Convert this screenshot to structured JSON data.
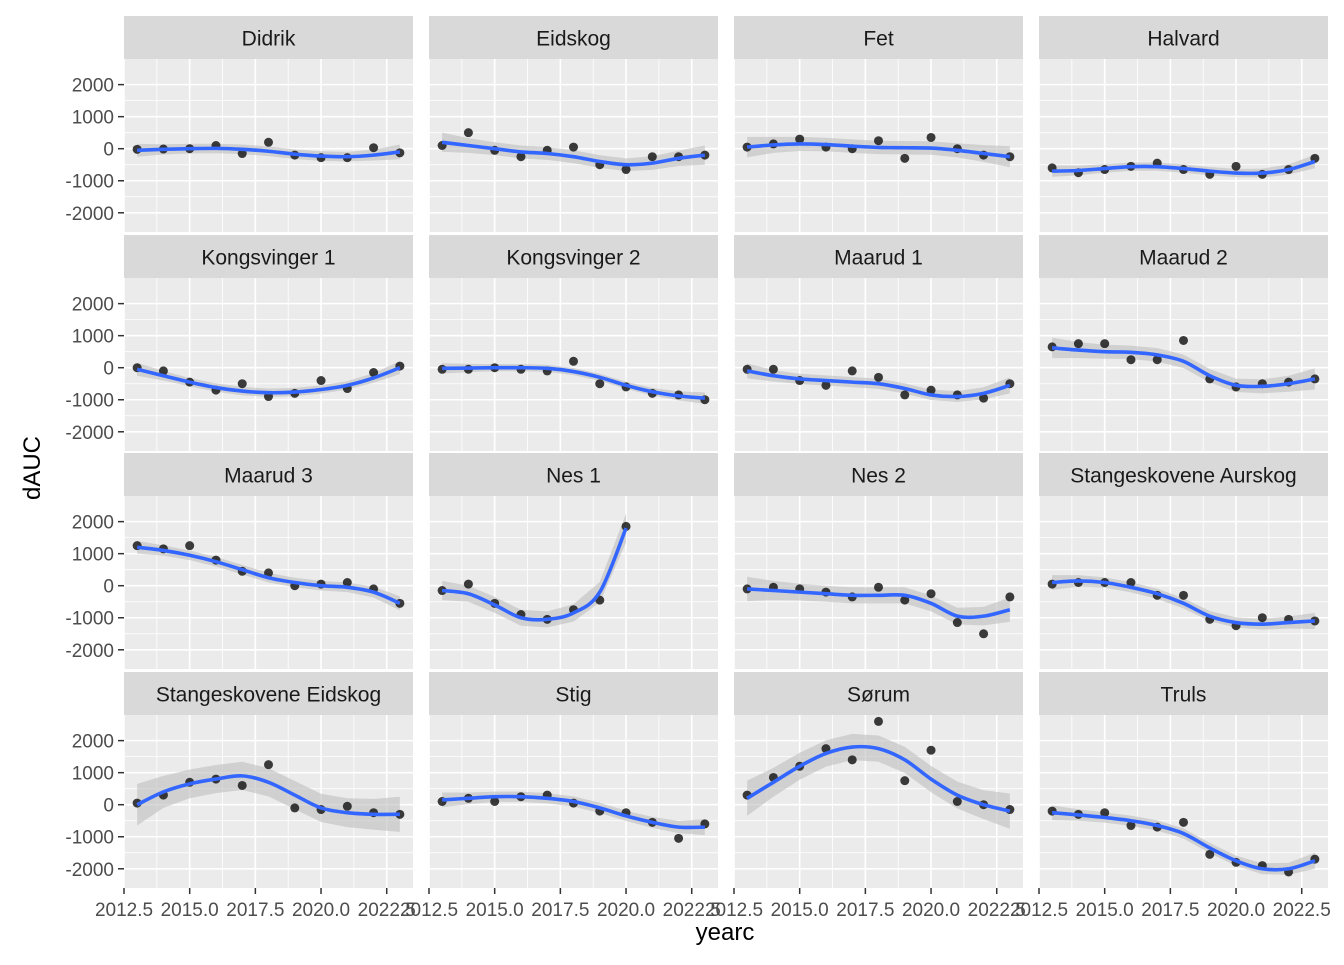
{
  "chart_data": {
    "type": "scatter",
    "xlabel": "yearc",
    "ylabel": "dAUC",
    "xlim": [
      2012.5,
      2023.5
    ],
    "ylim": [
      -2600,
      2800
    ],
    "x_ticks": [
      2012.5,
      2015.0,
      2017.5,
      2020.0,
      2022.5
    ],
    "x_tick_labels": [
      "2012.5",
      "2015.0",
      "2017.5",
      "2020.0",
      "2022.5"
    ],
    "y_ticks": [
      -2000,
      -1000,
      0,
      1000,
      2000
    ],
    "y_tick_labels": [
      "-2000",
      "-1000",
      "0",
      "1000",
      "2000"
    ],
    "grid": true,
    "colors": {
      "panel_bg": "#EBEBEB",
      "strip_bg": "#D9D9D9",
      "grid": "#FFFFFF",
      "point": "#1A1A1A",
      "smooth": "#3366FF",
      "band": "#BEBEBE"
    },
    "facets": [
      {
        "title": "Didrik",
        "x": [
          2013,
          2014,
          2015,
          2016,
          2017,
          2018,
          2019,
          2020,
          2021,
          2022,
          2023
        ],
        "y": [
          -20,
          -10,
          0,
          100,
          -150,
          200,
          -200,
          -280,
          -280,
          30,
          -130
        ],
        "smooth": [
          -50,
          -20,
          0,
          10,
          -20,
          -80,
          -170,
          -230,
          -250,
          -200,
          -100
        ],
        "se": [
          200,
          160,
          150,
          150,
          150,
          150,
          150,
          150,
          150,
          170,
          230
        ]
      },
      {
        "title": "Eidskog",
        "x": [
          2013,
          2014,
          2015,
          2016,
          2017,
          2018,
          2019,
          2020,
          2021,
          2022,
          2023
        ],
        "y": [
          100,
          500,
          -50,
          -250,
          -50,
          50,
          -500,
          -650,
          -250,
          -250,
          -200
        ],
        "smooth": [
          200,
          100,
          0,
          -100,
          -150,
          -250,
          -400,
          -500,
          -450,
          -300,
          -200
        ],
        "se": [
          300,
          230,
          200,
          200,
          200,
          200,
          200,
          200,
          210,
          240,
          300
        ]
      },
      {
        "title": "Fet",
        "x": [
          2013,
          2014,
          2015,
          2016,
          2017,
          2018,
          2019,
          2020,
          2021,
          2022,
          2023
        ],
        "y": [
          50,
          150,
          300,
          50,
          0,
          250,
          -300,
          350,
          0,
          -200,
          -250
        ],
        "smooth": [
          50,
          120,
          150,
          130,
          80,
          40,
          30,
          20,
          -50,
          -150,
          -250
        ],
        "se": [
          320,
          250,
          220,
          210,
          210,
          210,
          210,
          210,
          220,
          260,
          330
        ]
      },
      {
        "title": "Halvard",
        "x": [
          2013,
          2014,
          2015,
          2016,
          2017,
          2018,
          2019,
          2020,
          2021,
          2022,
          2023
        ],
        "y": [
          -600,
          -750,
          -650,
          -550,
          -450,
          -650,
          -800,
          -550,
          -800,
          -650,
          -300
        ],
        "smooth": [
          -700,
          -680,
          -620,
          -560,
          -560,
          -620,
          -700,
          -760,
          -760,
          -650,
          -400
        ],
        "se": [
          180,
          150,
          130,
          130,
          130,
          130,
          130,
          130,
          140,
          160,
          210
        ]
      },
      {
        "title": "Kongsvinger 1",
        "x": [
          2013,
          2014,
          2015,
          2016,
          2017,
          2018,
          2019,
          2020,
          2021,
          2022,
          2023
        ],
        "y": [
          0,
          -100,
          -450,
          -700,
          -500,
          -900,
          -800,
          -400,
          -650,
          -150,
          50
        ],
        "smooth": [
          -50,
          -250,
          -450,
          -620,
          -730,
          -780,
          -760,
          -680,
          -550,
          -320,
          0
        ],
        "se": [
          200,
          150,
          130,
          130,
          130,
          130,
          130,
          130,
          130,
          150,
          200
        ]
      },
      {
        "title": "Kongsvinger 2",
        "x": [
          2013,
          2014,
          2015,
          2016,
          2017,
          2018,
          2019,
          2020,
          2021,
          2022,
          2023
        ],
        "y": [
          -50,
          -50,
          0,
          -50,
          -100,
          200,
          -500,
          -600,
          -800,
          -850,
          -1000
        ],
        "smooth": [
          -20,
          -10,
          0,
          0,
          -20,
          -120,
          -300,
          -550,
          -750,
          -880,
          -950
        ],
        "se": [
          160,
          130,
          110,
          110,
          110,
          110,
          110,
          110,
          120,
          140,
          180
        ]
      },
      {
        "title": "Maarud 1",
        "x": [
          2013,
          2014,
          2015,
          2016,
          2017,
          2018,
          2019,
          2020,
          2021,
          2022,
          2023
        ],
        "y": [
          -50,
          -50,
          -400,
          -550,
          -100,
          -300,
          -850,
          -700,
          -850,
          -950,
          -500
        ],
        "smooth": [
          -100,
          -250,
          -350,
          -400,
          -450,
          -500,
          -650,
          -850,
          -900,
          -800,
          -550
        ],
        "se": [
          230,
          180,
          160,
          160,
          160,
          160,
          160,
          160,
          170,
          190,
          250
        ]
      },
      {
        "title": "Maarud 2",
        "x": [
          2013,
          2014,
          2015,
          2016,
          2017,
          2018,
          2019,
          2020,
          2021,
          2022,
          2023
        ],
        "y": [
          650,
          750,
          750,
          250,
          250,
          850,
          -350,
          -600,
          -500,
          -450,
          -350
        ],
        "smooth": [
          620,
          550,
          500,
          480,
          400,
          200,
          -250,
          -550,
          -580,
          -500,
          -350
        ],
        "se": [
          320,
          250,
          220,
          210,
          210,
          210,
          210,
          210,
          220,
          250,
          330
        ]
      },
      {
        "title": "Maarud 3",
        "x": [
          2013,
          2014,
          2015,
          2016,
          2017,
          2018,
          2019,
          2020,
          2021,
          2022,
          2023
        ],
        "y": [
          1250,
          1150,
          1250,
          800,
          450,
          400,
          0,
          50,
          100,
          -100,
          -550
        ],
        "smooth": [
          1200,
          1100,
          950,
          750,
          500,
          250,
          100,
          0,
          -50,
          -200,
          -550
        ],
        "se": [
          200,
          160,
          150,
          150,
          150,
          150,
          150,
          150,
          150,
          170,
          220
        ]
      },
      {
        "title": "Nes 1",
        "x": [
          2013,
          2014,
          2015,
          2016,
          2017,
          2018,
          2019,
          2020
        ],
        "y": [
          -150,
          50,
          -550,
          -900,
          -1050,
          -750,
          -450,
          1850
        ],
        "smooth": [
          -150,
          -250,
          -600,
          -1000,
          -1050,
          -850,
          -200,
          1800
        ],
        "se": [
          300,
          250,
          250,
          250,
          250,
          270,
          320,
          450
        ]
      },
      {
        "title": "Nes 2",
        "x": [
          2013,
          2014,
          2015,
          2016,
          2017,
          2018,
          2019,
          2020,
          2021,
          2022,
          2023
        ],
        "y": [
          -100,
          -50,
          -100,
          -200,
          -350,
          -50,
          -450,
          -250,
          -1150,
          -1500,
          -350
        ],
        "smooth": [
          -100,
          -150,
          -200,
          -250,
          -300,
          -300,
          -300,
          -550,
          -950,
          -950,
          -750
        ],
        "se": [
          380,
          300,
          260,
          250,
          250,
          250,
          250,
          250,
          260,
          290,
          380
        ]
      },
      {
        "title": "Stangeskovene Aurskog",
        "x": [
          2013,
          2014,
          2015,
          2016,
          2017,
          2018,
          2019,
          2020,
          2021,
          2022,
          2023
        ],
        "y": [
          50,
          100,
          100,
          100,
          -300,
          -300,
          -1050,
          -1250,
          -1000,
          -1050,
          -1100
        ],
        "smooth": [
          100,
          150,
          100,
          -50,
          -250,
          -550,
          -950,
          -1150,
          -1200,
          -1150,
          -1100
        ],
        "se": [
          230,
          180,
          160,
          160,
          160,
          160,
          160,
          160,
          170,
          190,
          250
        ]
      },
      {
        "title": "Stangeskovene Eidskog",
        "x": [
          2013,
          2014,
          2015,
          2016,
          2017,
          2018,
          2019,
          2020,
          2021,
          2022,
          2023
        ],
        "y": [
          50,
          300,
          700,
          800,
          600,
          1250,
          -100,
          -150,
          -50,
          -250,
          -300
        ],
        "smooth": [
          0,
          400,
          650,
          800,
          900,
          700,
          300,
          -100,
          -250,
          -300,
          -300
        ],
        "se": [
          650,
          500,
          450,
          440,
          440,
          440,
          440,
          440,
          450,
          480,
          550
        ]
      },
      {
        "title": "Stig",
        "x": [
          2013,
          2014,
          2015,
          2016,
          2017,
          2018,
          2019,
          2020,
          2021,
          2022,
          2023
        ],
        "y": [
          100,
          200,
          100,
          250,
          300,
          50,
          -200,
          -250,
          -550,
          -1050,
          -600
        ],
        "smooth": [
          150,
          200,
          250,
          250,
          200,
          100,
          -100,
          -350,
          -550,
          -700,
          -700
        ],
        "se": [
          230,
          180,
          160,
          160,
          160,
          160,
          160,
          160,
          170,
          190,
          250
        ]
      },
      {
        "title": "Sørum",
        "x": [
          2013,
          2014,
          2015,
          2016,
          2017,
          2018,
          2019,
          2020,
          2021,
          2022,
          2023
        ],
        "y": [
          300,
          850,
          1200,
          1750,
          1400,
          2600,
          750,
          1700,
          100,
          0,
          -150
        ],
        "smooth": [
          200,
          700,
          1200,
          1600,
          1800,
          1750,
          1400,
          800,
          300,
          0,
          -200
        ],
        "se": [
          550,
          450,
          420,
          410,
          410,
          410,
          410,
          410,
          420,
          450,
          550
        ]
      },
      {
        "title": "Truls",
        "x": [
          2013,
          2014,
          2015,
          2016,
          2017,
          2018,
          2019,
          2020,
          2021,
          2022,
          2023
        ],
        "y": [
          -200,
          -300,
          -250,
          -650,
          -700,
          -550,
          -1550,
          -1800,
          -1900,
          -2100,
          -1700
        ],
        "smooth": [
          -250,
          -320,
          -400,
          -500,
          -650,
          -900,
          -1350,
          -1750,
          -2000,
          -2000,
          -1750
        ],
        "se": [
          230,
          180,
          160,
          160,
          160,
          160,
          160,
          160,
          170,
          190,
          250
        ]
      }
    ]
  }
}
